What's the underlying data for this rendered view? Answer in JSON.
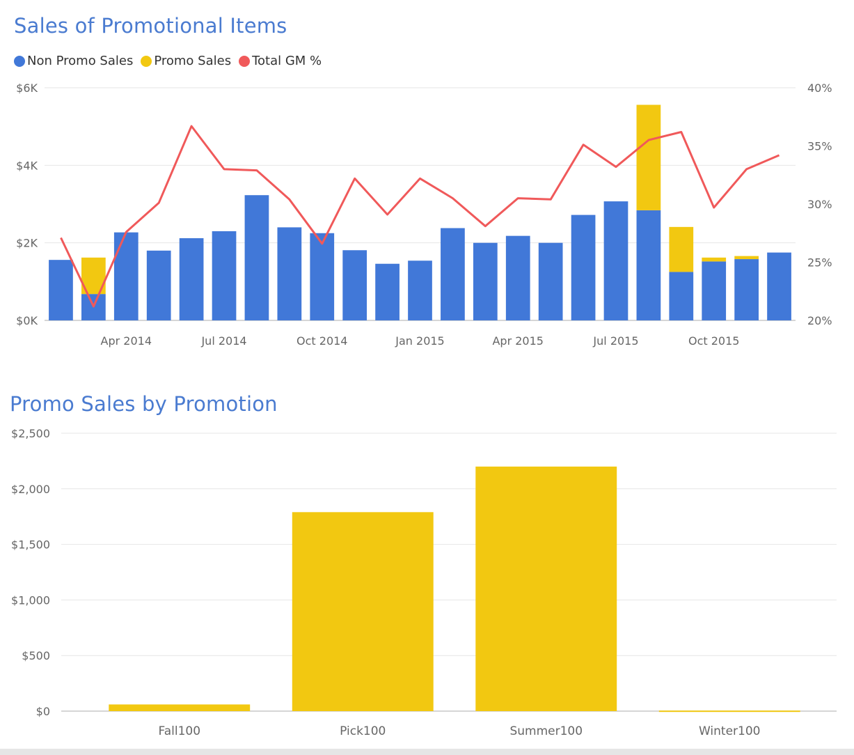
{
  "colors": {
    "non_promo": "#4178d8",
    "promo": "#f2c811",
    "gm_line": "#f0595a",
    "gridline": "#e6e6e6",
    "axis_text": "#666666",
    "title": "#4a7bd0"
  },
  "chart_data": [
    {
      "type": "bar",
      "title": "Sales of Promotional Items",
      "stacked": true,
      "legend_position": "top-left",
      "legend": [
        {
          "label": "Non Promo Sales",
          "color": "#4178d8"
        },
        {
          "label": "Promo Sales",
          "color": "#f2c811"
        },
        {
          "label": "Total GM %",
          "color": "#f0595a"
        }
      ],
      "x_tick_labels": [
        "Apr 2014",
        "Jul 2014",
        "Oct 2014",
        "Jan 2015",
        "Apr 2015",
        "Jul 2015",
        "Oct 2015"
      ],
      "x_tick_positions": [
        2,
        5,
        8,
        11,
        14,
        17,
        20
      ],
      "y_tick_labels": [
        "$0K",
        "$2K",
        "$4K",
        "$6K"
      ],
      "y_right_tick_labels": [
        "20%",
        "25%",
        "30%",
        "35%",
        "40%"
      ],
      "ylim": [
        0,
        6000
      ],
      "y2lim": [
        20,
        40
      ],
      "grid": true,
      "categories": [
        "Feb 2014",
        "Mar 2014",
        "Apr 2014",
        "May 2014",
        "Jun 2014",
        "Jul 2014",
        "Aug 2014",
        "Sep 2014",
        "Oct 2014",
        "Nov 2014",
        "Dec 2014",
        "Jan 2015",
        "Feb 2015",
        "Mar 2015",
        "Apr 2015",
        "May 2015",
        "Jun 2015",
        "Jul 2015",
        "Aug 2015",
        "Sep 2015",
        "Oct 2015",
        "Nov 2015",
        "Dec 2015"
      ],
      "series": [
        {
          "name": "Non Promo Sales",
          "axis": "left",
          "values": [
            1560,
            680,
            2270,
            1800,
            2120,
            2300,
            3230,
            2400,
            2250,
            1810,
            1460,
            1540,
            2380,
            2000,
            2180,
            2000,
            2720,
            3070,
            2840,
            1250,
            1520,
            1580,
            1750
          ]
        },
        {
          "name": "Promo Sales",
          "axis": "left",
          "values": [
            0,
            940,
            0,
            0,
            0,
            0,
            0,
            0,
            0,
            0,
            0,
            0,
            0,
            0,
            0,
            0,
            0,
            0,
            2720,
            1160,
            100,
            80,
            0
          ]
        },
        {
          "name": "Total GM %",
          "axis": "right",
          "type": "line",
          "values": [
            27.1,
            21.2,
            27.6,
            30.1,
            36.7,
            33.0,
            32.9,
            30.4,
            26.6,
            32.2,
            29.1,
            32.2,
            30.5,
            28.1,
            30.5,
            30.4,
            35.1,
            33.2,
            35.5,
            36.2,
            29.7,
            33.0,
            34.2
          ]
        }
      ]
    },
    {
      "type": "bar",
      "title": "Promo Sales by Promotion",
      "categories": [
        "Fall100",
        "Pick100",
        "Summer100",
        "Winter100"
      ],
      "values": [
        60,
        1790,
        2200,
        5
      ],
      "y_tick_labels": [
        "$0",
        "$500",
        "$1,000",
        "$1,500",
        "$2,000",
        "$2,500"
      ],
      "ylim": [
        0,
        2500
      ],
      "grid": true,
      "color": "#f2c811"
    }
  ]
}
